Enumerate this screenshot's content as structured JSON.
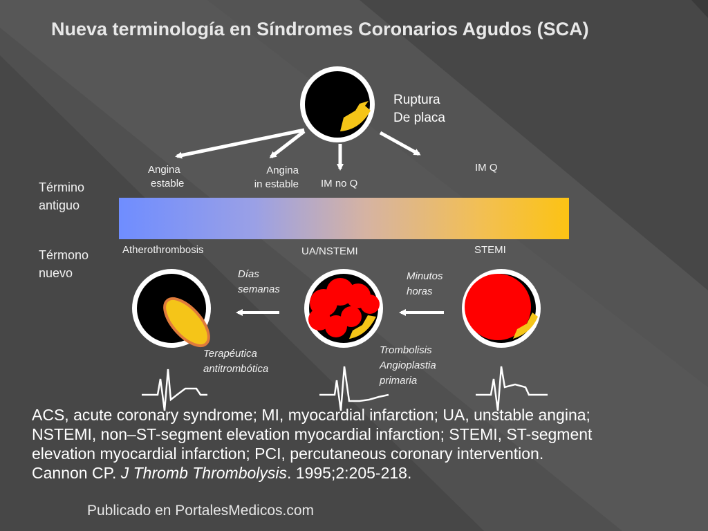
{
  "title": "Nueva terminología en Síndromes Coronarios Agudos (SCA)",
  "top_label": [
    "Ruptura",
    "De placa"
  ],
  "old_terms": {
    "heading": [
      "Término",
      "antiguo"
    ],
    "angina_estable": [
      "Angina",
      "estable"
    ],
    "angina_inestable": [
      "Angina",
      "in estable"
    ],
    "im_no_q": "IM no Q",
    "im_q": "IM Q"
  },
  "new_terms": {
    "heading": [
      "Térmono",
      "nuevo"
    ],
    "atherothrombosis": "Atherothrombosis",
    "ua_nstemi": "UA/NSTEMI",
    "stemi": "STEMI"
  },
  "timing": {
    "dias": [
      "Días",
      "semanas"
    ],
    "minutos": [
      "Minutos",
      "horas"
    ]
  },
  "treatments": {
    "antitrombotica": [
      "Terapéutica",
      "antitrombótica"
    ],
    "trombolisis": [
      "Trombolisis",
      "Angioplastia",
      "primaria"
    ]
  },
  "caption": {
    "line1": "ACS, acute coronary syndrome; MI, myocardial infarction; UA, unstable angina;",
    "line2": "NSTEMI, non–ST-segment elevation myocardial infarction; STEMI, ST-segment",
    "line3": "elevation myocardial infarction; PCI, percutaneous coronary intervention.",
    "ref_author": "Cannon CP. ",
    "ref_journal": "J Thromb Thrombolysis",
    "ref_tail": ". 1995;2:205-218."
  },
  "footer": "Publicado en PortalesMedicos.com",
  "colors": {
    "bar_start": "#6f8dff",
    "bar_end": "#fcc314",
    "plaque_yellow": "#f5c518",
    "thrombus_red": "#ff0000",
    "lumen_black": "#000000"
  }
}
